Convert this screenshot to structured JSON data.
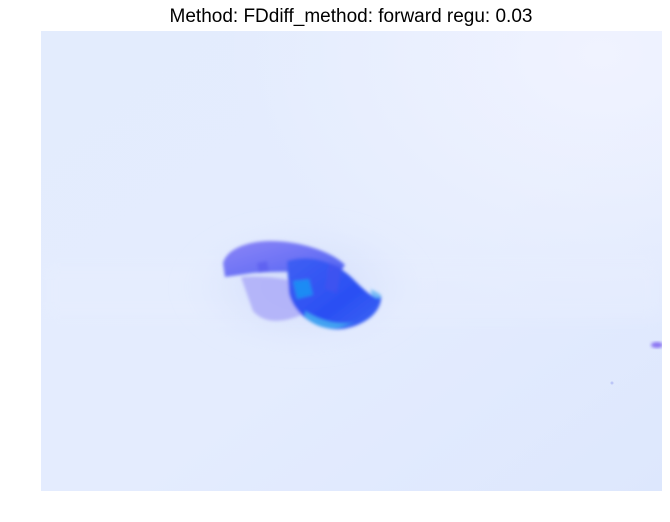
{
  "figure": {
    "title": "Method: FDdiff_method: forward regu: 0.03"
  },
  "colors": {
    "background_light": "#eaf1fe",
    "background_mid": "#dde8fd",
    "object_violet": "#7b77f6",
    "object_blue": "#2f54f3",
    "object_cyan": "#1f8bf4",
    "speck_purple": "#7a5ef0"
  }
}
